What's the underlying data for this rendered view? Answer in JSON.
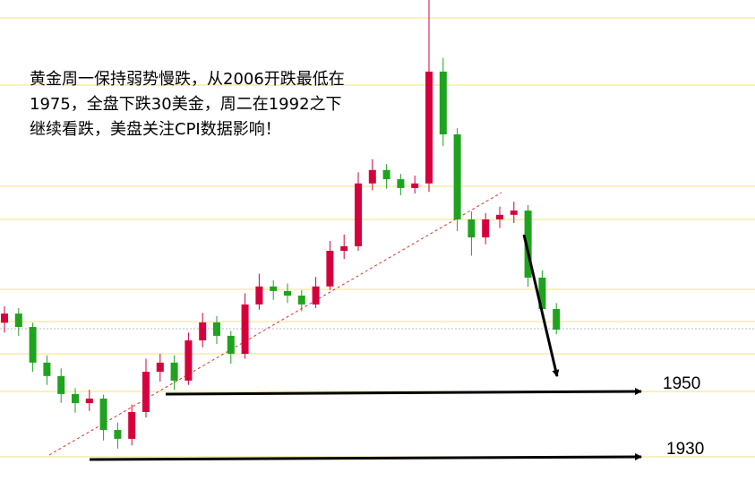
{
  "chart_data": {
    "type": "candlestick",
    "ylim": [
      1922.6,
      2069.7
    ],
    "up_color": "#d6003c",
    "down_color": "#1fa31f",
    "open": [
      1971.0,
      1973.8,
      1969.7,
      1958.8,
      1954.7,
      1949.2,
      1946.4,
      1947.8,
      1938.2,
      1935.5,
      1943.7,
      1956.0,
      1958.8,
      1953.3,
      1965.6,
      1971.1,
      1967.0,
      1961.5,
      1976.6,
      1982.1,
      1980.7,
      1979.3,
      1976.6,
      1982.1,
      1993.0,
      1994.4,
      2013.6,
      2017.7,
      2014.9,
      2012.2,
      2013.6,
      2047.8,
      2028.6,
      2002.6,
      1997.1,
      2002.6,
      2004.0,
      2005.3,
      1984.8,
      1975.2
    ],
    "high": [
      1976.0,
      1975.5,
      1971.0,
      1961.0,
      1957.0,
      1951.0,
      1950.5,
      1949.0,
      1940.5,
      1946.0,
      1960.0,
      1961.5,
      1961.0,
      1968.0,
      1974.0,
      1973.0,
      1968.5,
      1980.0,
      1986.0,
      1984.0,
      1983.0,
      1981.0,
      1985.0,
      1996.0,
      1998.0,
      2017.0,
      2021.0,
      2019.5,
      2016.5,
      2016.0,
      2069.7,
      2052.0,
      2030.5,
      2005.0,
      2004.5,
      2006.5,
      2008.0,
      2007.0,
      1987.0,
      1977.0
    ],
    "low": [
      1968.0,
      1967.0,
      1956.0,
      1952.0,
      1946.5,
      1943.5,
      1944.0,
      1935.0,
      1932.5,
      1933.5,
      1942.0,
      1953.0,
      1950.5,
      1952.0,
      1963.5,
      1964.5,
      1958.5,
      1960.0,
      1975.0,
      1978.0,
      1977.0,
      1974.5,
      1975.5,
      1981.0,
      1990.5,
      1993.0,
      2011.5,
      2012.0,
      2010.0,
      2010.5,
      2011.0,
      2025.0,
      1999.0,
      1991.5,
      1995.0,
      2000.0,
      2001.5,
      1982.0,
      1972.5,
      1967.5
    ],
    "close": [
      1973.8,
      1969.7,
      1958.8,
      1954.7,
      1949.2,
      1946.4,
      1947.8,
      1938.2,
      1935.5,
      1943.7,
      1956.0,
      1958.8,
      1953.3,
      1965.6,
      1971.1,
      1967.0,
      1961.5,
      1976.6,
      1982.1,
      1980.7,
      1979.3,
      1976.6,
      1982.1,
      1993.0,
      1994.4,
      2013.6,
      2017.7,
      2014.9,
      2012.2,
      2013.6,
      2047.8,
      2028.6,
      2002.6,
      1997.1,
      2002.6,
      2004.0,
      2005.3,
      1984.8,
      1975.2,
      1968.9
    ],
    "levels": [
      1950,
      1930
    ],
    "annotation": [
      "黄金周一保持弱势慢跌，从2006开跌最低在",
      "1975，全盘下跌30美金，周二在1992之下",
      "继续看跌，美盘关注CPI数据影响！"
    ]
  }
}
